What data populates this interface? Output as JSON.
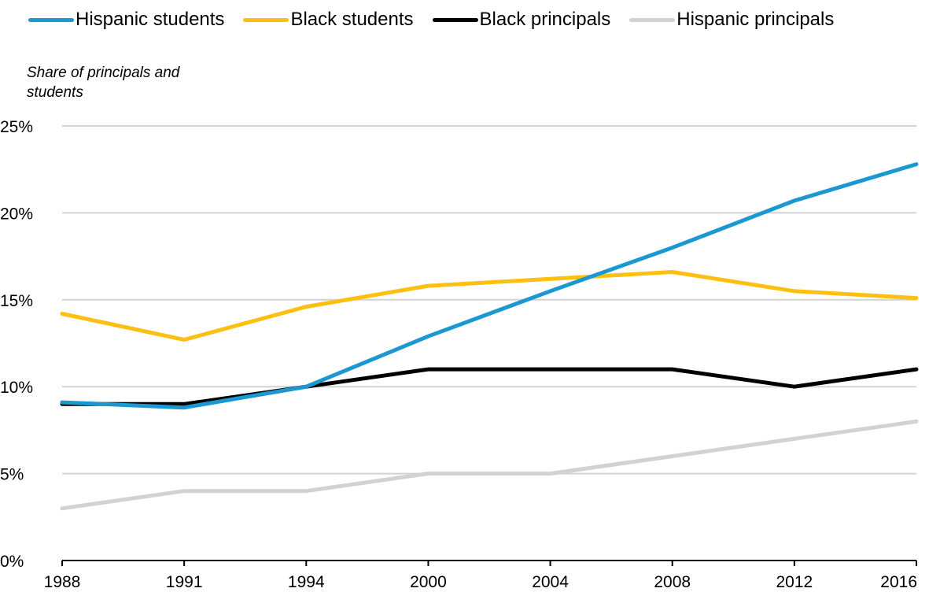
{
  "chart_data": {
    "type": "line",
    "title": "",
    "xlabel": "",
    "ylabel": "Share of principals and students",
    "categories": [
      "1988",
      "1991",
      "1994",
      "2000",
      "2004",
      "2008",
      "2012",
      "2016"
    ],
    "ylim": [
      0,
      25
    ],
    "yticks": [
      "0%",
      "5%",
      "10%",
      "15%",
      "20%",
      "25%"
    ],
    "grid": true,
    "legend_position": "top",
    "series": [
      {
        "name": "Hispanic students",
        "color": "#1b97d2",
        "values": [
          9.1,
          8.8,
          10.0,
          12.9,
          15.5,
          18.0,
          20.7,
          22.8
        ]
      },
      {
        "name": "Black students",
        "color": "#fdbf11",
        "values": [
          14.2,
          12.7,
          14.6,
          15.8,
          16.2,
          16.6,
          15.5,
          15.1
        ]
      },
      {
        "name": "Black principals",
        "color": "#000000",
        "values": [
          9,
          9,
          10,
          11,
          11,
          11,
          10,
          11
        ]
      },
      {
        "name": "Hispanic principals",
        "color": "#d2d2d2",
        "values": [
          3,
          4,
          4,
          5,
          5,
          6,
          7,
          8
        ]
      }
    ]
  }
}
